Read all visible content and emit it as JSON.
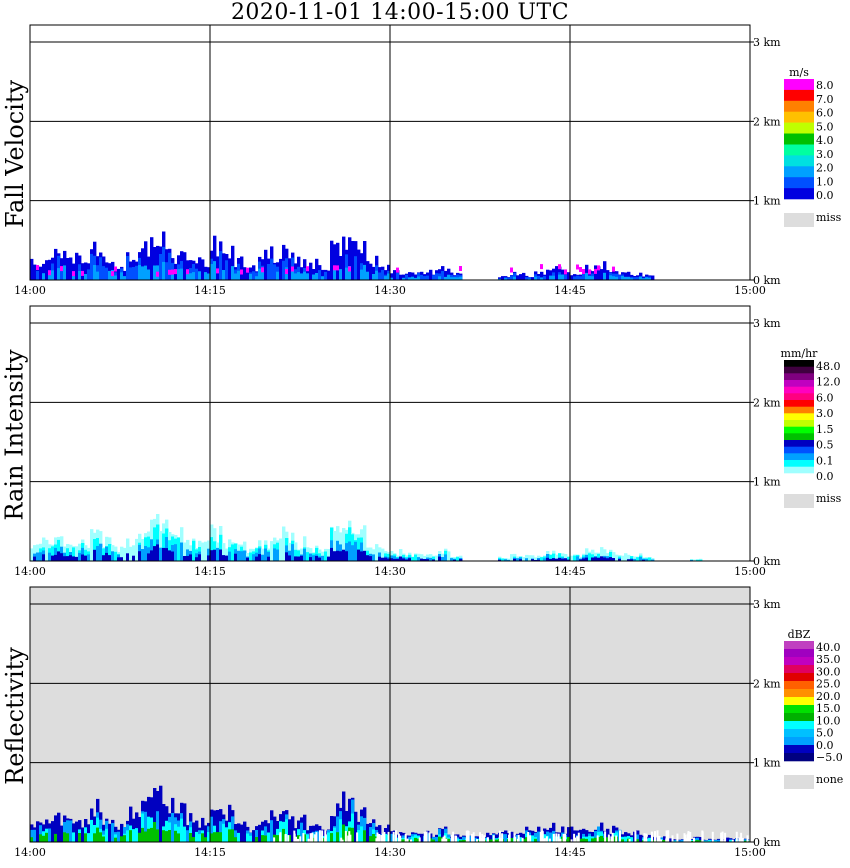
{
  "title": "2020-11-01   14:00-15:00 UTC",
  "chart_data": [
    {
      "type": "heatmap",
      "title": "Fall Velocity",
      "xlabel": "",
      "ylabel": "Fall Velocity",
      "x_ticks": [
        "14:00",
        "14:15",
        "14:30",
        "14:45",
        "15:00"
      ],
      "y_ticks": [
        "0 km",
        "1 km",
        "2 km",
        "3 km"
      ],
      "xlim_minutes": [
        0,
        60
      ],
      "ylim_km": [
        0,
        3.0
      ],
      "grid": true,
      "background": "#ffffff",
      "legend": {
        "unit": "m/s",
        "colors": [
          "#ff00ff",
          "#ff0000",
          "#ff8000",
          "#ffc000",
          "#c0ff00",
          "#00c000",
          "#00ffa0",
          "#00e0e0",
          "#00a0ff",
          "#0050ff",
          "#0000e0"
        ],
        "labels": [
          "8.0",
          "7.0",
          "6.0",
          "5.0",
          "4.0",
          "3.0",
          "2.0",
          "1.0",
          "0.0"
        ],
        "miss_label": "miss",
        "miss_color": "#dddddd"
      },
      "echo_tops_km": [
        0.25,
        0.3,
        0.45,
        0.35,
        0.3,
        0.5,
        0.3,
        0.2,
        0.4,
        0.55,
        0.7,
        0.6,
        0.45,
        0.35,
        0.3,
        0.5,
        0.4,
        0.3,
        0.25,
        0.35,
        0.45,
        0.5,
        0.3,
        0.25,
        0.2,
        0.55,
        0.6,
        0.5,
        0.3,
        0.2,
        0.15,
        0.1,
        0.12,
        0.15,
        0.2,
        0.1,
        0,
        0,
        0,
        0.05,
        0.12,
        0.08,
        0.1,
        0.2,
        0.15,
        0.1,
        0.2,
        0.25,
        0.2,
        0.15,
        0.1,
        0.08,
        0,
        0,
        0,
        0,
        0,
        0,
        0,
        0
      ],
      "colors_main": [
        "#0000e0",
        "#0050ff",
        "#00a0ff"
      ],
      "accent": "#ff00ff"
    },
    {
      "type": "heatmap",
      "title": "Rain Intensity",
      "xlabel": "",
      "ylabel": "Rain Intensity",
      "x_ticks": [
        "14:00",
        "14:15",
        "14:30",
        "14:45",
        "15:00"
      ],
      "y_ticks": [
        "0 km",
        "1 km",
        "2 km",
        "3 km"
      ],
      "xlim_minutes": [
        0,
        60
      ],
      "ylim_km": [
        0,
        3.0
      ],
      "grid": true,
      "background": "#ffffff",
      "legend": {
        "unit": "mm/hr",
        "colors": [
          "#000000",
          "#400040",
          "#800080",
          "#c000c0",
          "#ff00c0",
          "#ff0080",
          "#ff0000",
          "#ff8000",
          "#ffff00",
          "#c0ff00",
          "#00ff00",
          "#00c000",
          "#0000c0",
          "#0050ff",
          "#00a0ff",
          "#00ffff",
          "#a0ffff",
          "#ffffff"
        ],
        "labels": [
          "48.0",
          "12.0",
          "6.0",
          "3.0",
          "1.5",
          "0.5",
          "0.1",
          "0.0"
        ],
        "miss_label": "miss",
        "miss_color": "#dddddd"
      },
      "echo_tops_km": [
        0.25,
        0.3,
        0.35,
        0.3,
        0.3,
        0.45,
        0.3,
        0.2,
        0.35,
        0.5,
        0.65,
        0.55,
        0.4,
        0.3,
        0.25,
        0.45,
        0.35,
        0.3,
        0.2,
        0.3,
        0.4,
        0.45,
        0.3,
        0.2,
        0.2,
        0.5,
        0.6,
        0.45,
        0.25,
        0.2,
        0.15,
        0.1,
        0.1,
        0.12,
        0.15,
        0.08,
        0,
        0,
        0,
        0.05,
        0.1,
        0.08,
        0.08,
        0.15,
        0.12,
        0.1,
        0.15,
        0.2,
        0.15,
        0.12,
        0.1,
        0.06,
        0,
        0,
        0,
        0.03,
        0,
        0,
        0,
        0
      ],
      "colors_main": [
        "#a0ffff",
        "#00ffff",
        "#00a0ff",
        "#0000c0"
      ]
    },
    {
      "type": "heatmap",
      "title": "Reflectivity",
      "xlabel": "",
      "ylabel": "Reflectivity",
      "x_ticks": [
        "14:00",
        "14:15",
        "14:30",
        "14:45",
        "15:00"
      ],
      "y_ticks": [
        "0 km",
        "1 km",
        "2 km",
        "3 km"
      ],
      "xlim_minutes": [
        0,
        60
      ],
      "ylim_km": [
        0,
        3.0
      ],
      "grid": true,
      "background": "#dddddd",
      "legend": {
        "unit": "dBZ",
        "colors": [
          "#c040c0",
          "#a000c0",
          "#c000c0",
          "#e00060",
          "#e00000",
          "#ff6000",
          "#ff9000",
          "#ffff00",
          "#00e000",
          "#00b000",
          "#00ffff",
          "#00c0ff",
          "#00a0ff",
          "#0000c0",
          "#000080"
        ],
        "labels": [
          "40.0",
          "35.0",
          "30.0",
          "25.0",
          "20.0",
          "15.0",
          "10.0",
          "5.0",
          "0.0",
          "−5.0"
        ],
        "miss_label": "none",
        "miss_color": "#dddddd"
      },
      "echo_tops_km": [
        0.3,
        0.35,
        0.4,
        0.35,
        0.35,
        0.5,
        0.35,
        0.25,
        0.45,
        0.6,
        0.75,
        0.65,
        0.5,
        0.4,
        0.3,
        0.5,
        0.45,
        0.35,
        0.25,
        0.35,
        0.45,
        0.5,
        0.35,
        0.25,
        0.2,
        0.55,
        0.65,
        0.5,
        0.3,
        0.2,
        0.15,
        0.12,
        0.15,
        0.15,
        0.2,
        0.12,
        0.1,
        0.08,
        0.12,
        0.15,
        0.15,
        0.18,
        0.2,
        0.22,
        0.2,
        0.18,
        0.22,
        0.25,
        0.2,
        0.18,
        0.15,
        0.1,
        0.08,
        0.05,
        0.05,
        0.08,
        0.05,
        0.05,
        0.08,
        0.05
      ],
      "colors_main": [
        "#0000c0",
        "#00a0ff",
        "#00ffff",
        "#00c000"
      ]
    }
  ]
}
